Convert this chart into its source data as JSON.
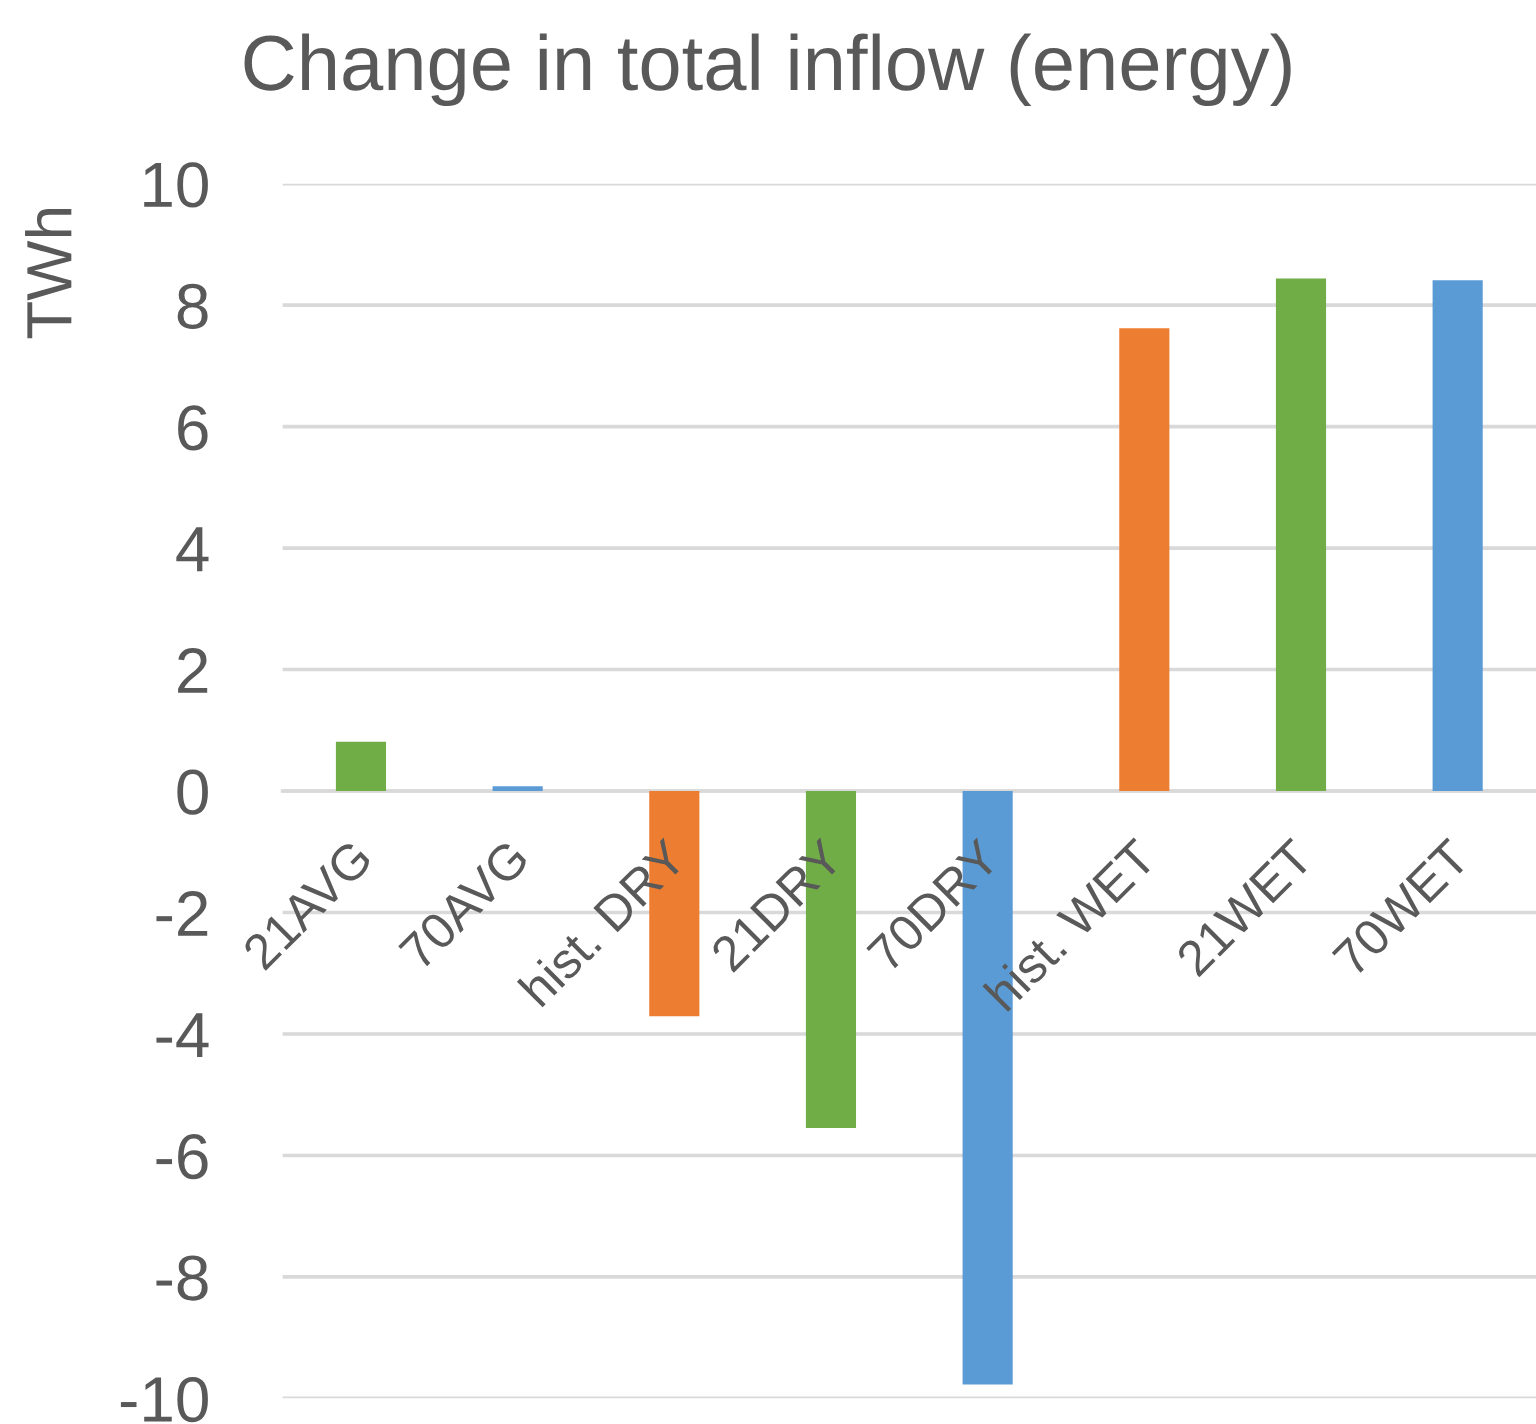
{
  "chart_data": {
    "type": "bar",
    "title": "Change in total inflow (energy)",
    "ylabel": "TWh",
    "categories": [
      "21AVG",
      "70AVG",
      "hist. DRY",
      "21DRY",
      "70DRY",
      "hist. WET",
      "21WET",
      "70WET"
    ],
    "values": [
      0.81,
      0.08,
      -3.71,
      -5.55,
      -9.77,
      7.62,
      8.44,
      8.41
    ],
    "colors": [
      "#70ad47",
      "#5b9bd5",
      "#ed7d31",
      "#70ad47",
      "#5b9bd5",
      "#ed7d31",
      "#70ad47",
      "#5b9bd5"
    ],
    "ylim": [
      -10,
      10
    ],
    "yticks": [
      -10,
      -8,
      -6,
      -4,
      -2,
      0,
      2,
      4,
      6,
      8,
      10
    ],
    "grid": "y"
  }
}
